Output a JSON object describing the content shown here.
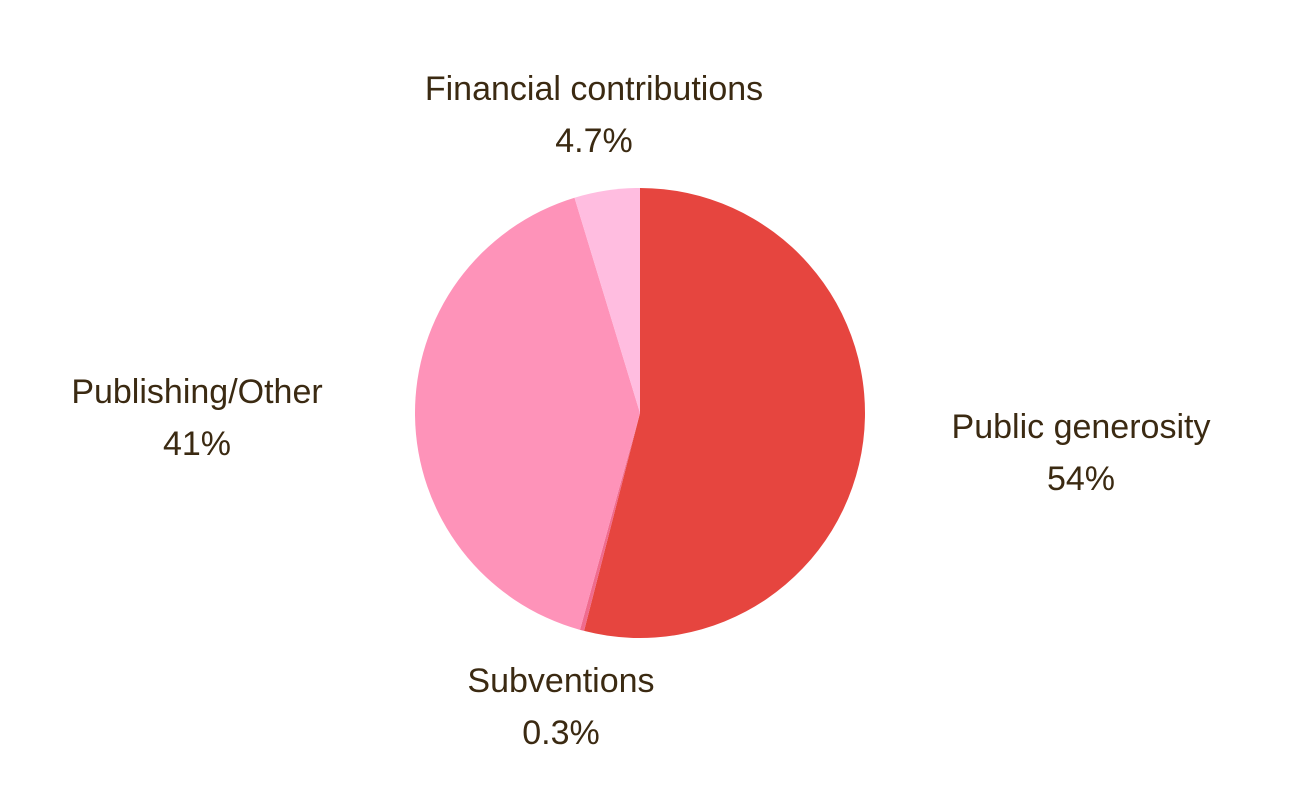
{
  "chart_data": {
    "type": "pie",
    "slices": [
      {
        "label": "Public generosity",
        "value": 54,
        "display": "54%",
        "color": "#e6453f"
      },
      {
        "label": "Subventions",
        "value": 0.3,
        "display": "0.3%",
        "color": "#f06b8e"
      },
      {
        "label": "Publishing/Other",
        "value": 41,
        "display": "41%",
        "color": "#fe93b9"
      },
      {
        "label": "Financial contributions",
        "value": 4.7,
        "display": "4.7%",
        "color": "#ffbde0"
      }
    ],
    "start": "12 o'clock",
    "direction": "clockwise",
    "labels": "outside, name above percentage"
  }
}
